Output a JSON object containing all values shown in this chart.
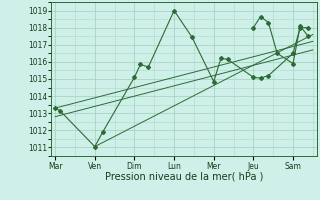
{
  "background_color": "#cef0e8",
  "grid_color": "#9dcfbe",
  "line_color": "#2d6a35",
  "ylim": [
    1010.5,
    1019.5
  ],
  "yticks": [
    1011,
    1012,
    1013,
    1014,
    1015,
    1016,
    1017,
    1018,
    1019
  ],
  "xlabel": "Pression niveau de la mer( hPa )",
  "day_labels": [
    "Mar",
    "Ven",
    "Dim",
    "Lun",
    "Mer",
    "Jeu",
    "Sam"
  ],
  "day_positions": [
    0,
    1,
    2,
    3,
    4,
    5,
    6
  ],
  "xlim": [
    -0.1,
    6.6
  ],
  "series1_x": [
    0,
    0.12,
    1.0,
    1.2,
    2.0,
    2.15,
    2.35,
    3.0,
    3.45,
    4.0,
    4.18,
    4.35,
    5.0,
    5.18,
    5.38,
    6.0,
    6.18,
    6.38
  ],
  "series1_y": [
    1013.3,
    1013.15,
    1011.05,
    1011.9,
    1015.1,
    1015.85,
    1015.7,
    1019.0,
    1017.45,
    1014.85,
    1016.2,
    1016.15,
    1015.1,
    1015.05,
    1015.2,
    1016.5,
    1018.0,
    1018.0
  ],
  "series2_x": [
    5.0,
    5.18,
    5.38,
    5.6,
    6.0,
    6.18,
    6.38
  ],
  "series2_y": [
    1018.0,
    1018.65,
    1018.3,
    1016.5,
    1015.9,
    1018.1,
    1017.5
  ],
  "trend1_x": [
    0,
    6.5
  ],
  "trend1_y": [
    1013.3,
    1017.2
  ],
  "trend2_x": [
    0,
    6.5
  ],
  "trend2_y": [
    1012.8,
    1016.7
  ],
  "trend3_x": [
    1.0,
    6.5
  ],
  "trend3_y": [
    1011.05,
    1017.6
  ],
  "figsize": [
    3.2,
    2.0
  ],
  "dpi": 100,
  "tick_fontsize": 5.5,
  "label_fontsize": 7.0
}
